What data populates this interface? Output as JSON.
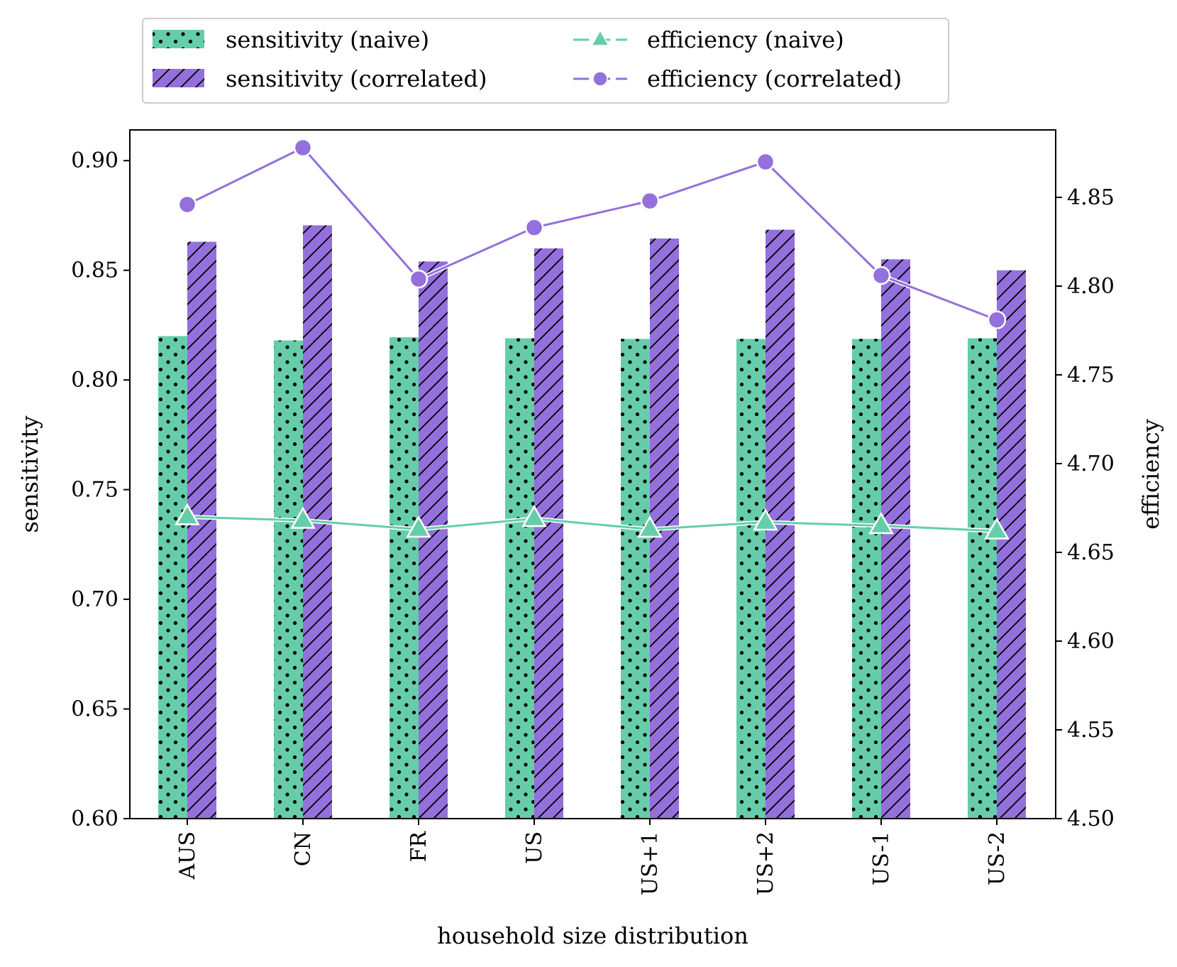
{
  "chart_data": {
    "type": "bar",
    "xlabel": "household size distribution",
    "ylabel": "sensitivity",
    "ylabel_right": "efficiency",
    "categories": [
      "AUS",
      "CN",
      "FR",
      "US",
      "US+1",
      "US+2",
      "US-1",
      "US-2"
    ],
    "ylim": [
      0.6,
      0.914
    ],
    "ylim_right": [
      4.5,
      4.888
    ],
    "yticks": [
      "0.60",
      "0.65",
      "0.70",
      "0.75",
      "0.80",
      "0.85",
      "0.90"
    ],
    "yticks_right": [
      "4.50",
      "4.55",
      "4.60",
      "4.65",
      "4.70",
      "4.75",
      "4.80",
      "4.85"
    ],
    "bar_series": [
      {
        "name": "sensitivity (naive)",
        "color": "#66CDAA",
        "hatch": "dots",
        "values": [
          0.82,
          0.818,
          0.8195,
          0.819,
          0.8187,
          0.8187,
          0.8187,
          0.819
        ]
      },
      {
        "name": "sensitivity (correlated)",
        "color": "#9370DB",
        "hatch": "diagonal",
        "values": [
          0.863,
          0.8705,
          0.854,
          0.86,
          0.8645,
          0.8685,
          0.855,
          0.85
        ]
      }
    ],
    "line_series": [
      {
        "name": "efficiency (naive)",
        "color": "#66CDAA",
        "marker": "triangle",
        "axis": "right",
        "values": [
          4.67,
          4.668,
          4.663,
          4.669,
          4.663,
          4.667,
          4.665,
          4.662
        ]
      },
      {
        "name": "efficiency (correlated)",
        "color": "#9370DB",
        "marker": "circle",
        "axis": "right",
        "values": [
          4.846,
          4.878,
          4.804,
          4.833,
          4.848,
          4.87,
          4.806,
          4.781
        ]
      }
    ],
    "legend": {
      "placement": "top",
      "entries": [
        "sensitivity (naive)",
        "sensitivity (correlated)",
        "efficiency (naive)",
        "efficiency (correlated)"
      ]
    }
  }
}
